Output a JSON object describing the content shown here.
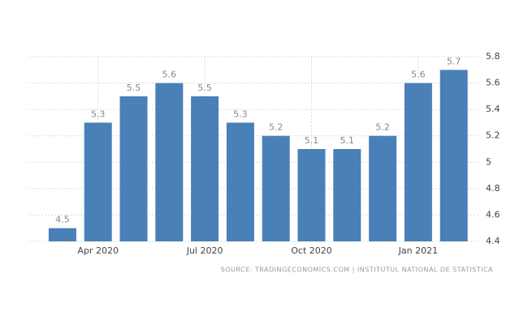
{
  "chart_data": {
    "type": "bar",
    "categories": [
      null,
      "Apr 2020",
      null,
      null,
      "Jul 2020",
      null,
      null,
      "Oct 2020",
      null,
      null,
      "Jan 2021",
      null
    ],
    "values": [
      4.5,
      5.3,
      5.5,
      5.6,
      5.5,
      5.3,
      5.2,
      5.1,
      5.1,
      5.2,
      5.6,
      5.7
    ],
    "color": "#4a80b8",
    "ylim": [
      4.4,
      5.8
    ],
    "yticks": [
      4.4,
      4.6,
      4.8,
      5,
      5.2,
      5.4,
      5.6,
      5.8
    ],
    "grid": true,
    "source": "SOURCE: TRADINGECONOMICS.COM | INSTITUTUL NATIONAL DE STATISTICA"
  }
}
